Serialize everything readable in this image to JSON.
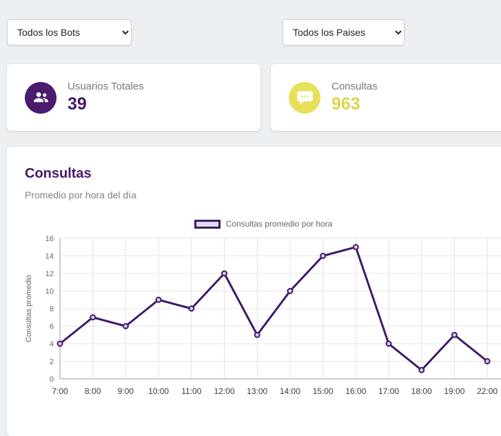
{
  "filters": {
    "bots_label": "Todos los Bots",
    "paises_label": "Todos los Paises"
  },
  "stats": [
    {
      "label": "Usuarios Totales",
      "value": "39",
      "icon": "users-icon",
      "icon_bg": "#4a1b6e",
      "value_color": "#45186b"
    },
    {
      "label": "Consultas",
      "value": "963",
      "icon": "chat-icon",
      "icon_bg": "#e7e05a",
      "value_color": "#ddd44e"
    }
  ],
  "chart_card": {
    "title": "Consultas",
    "subtitle": "Promedio por hora del día",
    "legend_label": "Consultas promedio por hora"
  },
  "chart_data": {
    "type": "line",
    "title": "Consultas promedio por hora",
    "categories": [
      "7:00",
      "8:00",
      "9:00",
      "10:00",
      "11:00",
      "12:00",
      "13:00",
      "14:00",
      "15:00",
      "16:00",
      "17:00",
      "18:00",
      "19:00",
      "22:00"
    ],
    "values": [
      4,
      7,
      6,
      9,
      8,
      12,
      5,
      10,
      14,
      15,
      4,
      1,
      5,
      2
    ],
    "xlabel": "",
    "ylabel": "Consultas promedio",
    "ylim": [
      0,
      16
    ],
    "ytick_step": 2,
    "grid": true,
    "legend_position": "top",
    "line_color": "#3e1a68",
    "point_fill": "#d4cbe0"
  }
}
